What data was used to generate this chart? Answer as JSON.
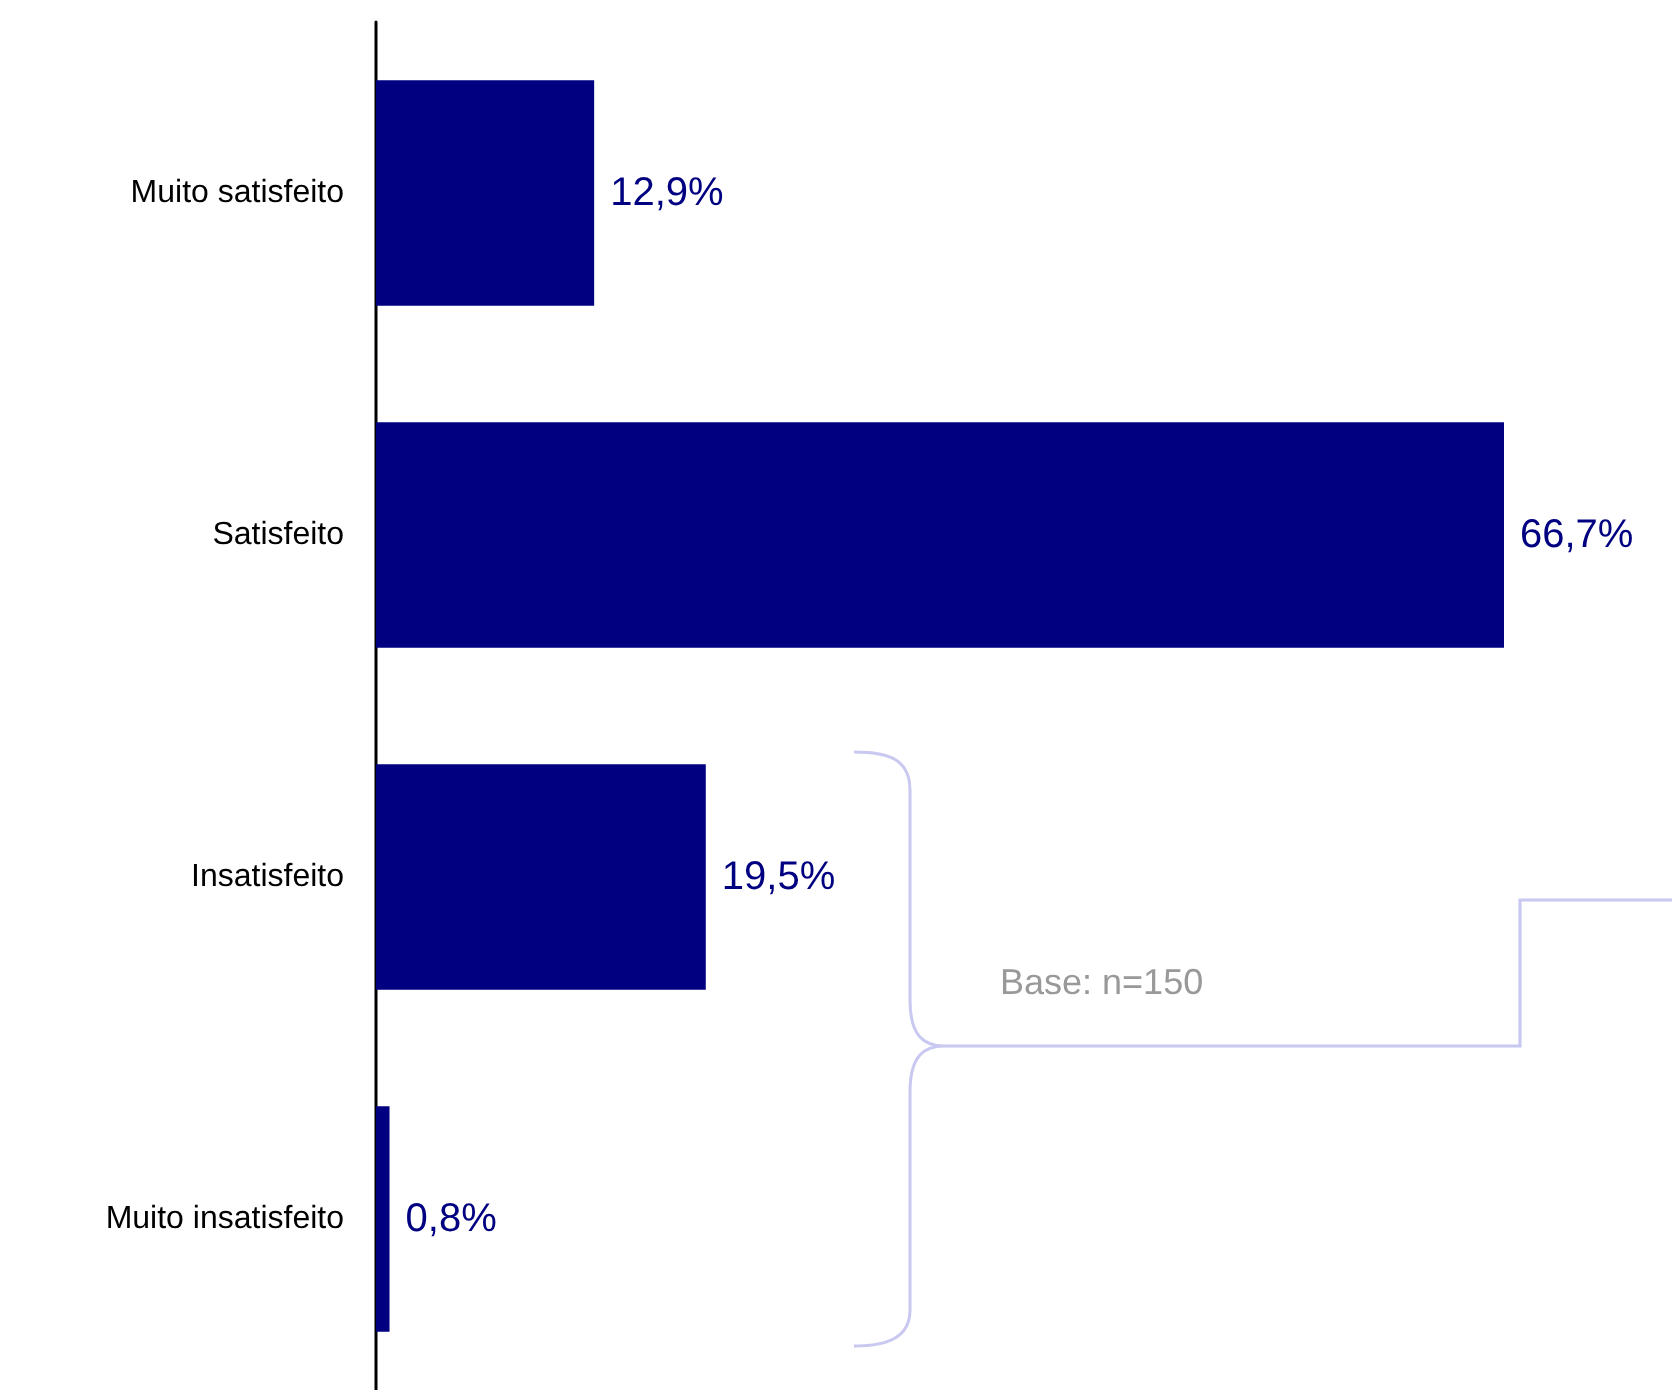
{
  "chart_data": {
    "type": "bar",
    "orientation": "horizontal",
    "categories": [
      "Muito satisfeito",
      "Satisfeito",
      "Insatisfeito",
      "Muito insatisfeito"
    ],
    "values": [
      12.9,
      66.7,
      19.5,
      0.8
    ],
    "value_labels": [
      "12,9%",
      "66,7%",
      "19,5%",
      "0,8%"
    ],
    "color": "#000080",
    "annotations": [
      "Base: n=150"
    ]
  }
}
